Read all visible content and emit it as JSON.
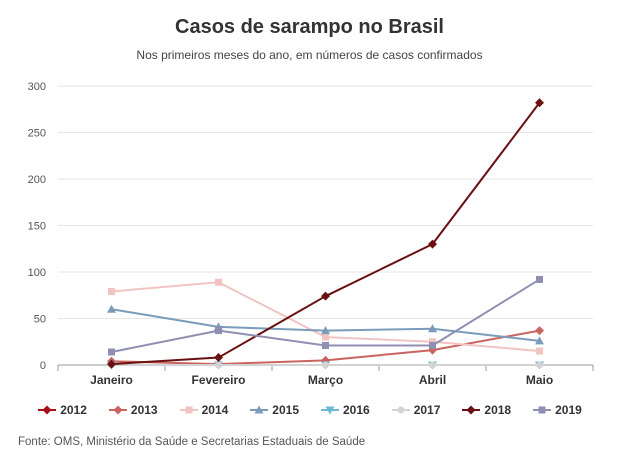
{
  "chart_data": {
    "type": "line",
    "title": "Casos de sarampo no Brasil",
    "subtitle": "Nos primeiros meses do ano, em números de casos confirmados",
    "categories": [
      "Janeiro",
      "Fevereiro",
      "Março",
      "Abril",
      "Maio"
    ],
    "ylim": [
      0,
      300
    ],
    "yticks": [
      0,
      50,
      100,
      150,
      200,
      250,
      300
    ],
    "grid": true,
    "legend_placement": "bottom",
    "series": [
      {
        "name": "2012",
        "color": "#a50f15",
        "marker": "diamond",
        "values": [
          null,
          null,
          null,
          null,
          null
        ]
      },
      {
        "name": "2013",
        "color": "#c9645f",
        "marker": "diamond",
        "values": [
          4,
          1,
          5,
          16,
          37
        ]
      },
      {
        "name": "2014",
        "color": "#f1c4c1",
        "marker": "square",
        "values": [
          79,
          89,
          30,
          25,
          15
        ]
      },
      {
        "name": "2015",
        "color": "#7a9cba",
        "marker": "triangle-up",
        "values": [
          60,
          41,
          37,
          39,
          26
        ]
      },
      {
        "name": "2016",
        "color": "#6fb8d3",
        "marker": "triangle-down",
        "values": [
          0,
          0,
          0,
          0,
          0
        ]
      },
      {
        "name": "2017",
        "color": "#d3d3d3",
        "marker": "circle",
        "values": [
          0,
          0,
          0,
          0,
          0
        ]
      },
      {
        "name": "2018",
        "color": "#6b1010",
        "marker": "diamond",
        "values": [
          1,
          8,
          74,
          130,
          282
        ]
      },
      {
        "name": "2019",
        "color": "#8f8fb3",
        "marker": "square",
        "values": [
          14,
          37,
          21,
          21,
          92
        ]
      }
    ]
  },
  "source_text": "Fonte: OMS, Ministério da Saúde e Secretarias Estaduais de Saúde"
}
